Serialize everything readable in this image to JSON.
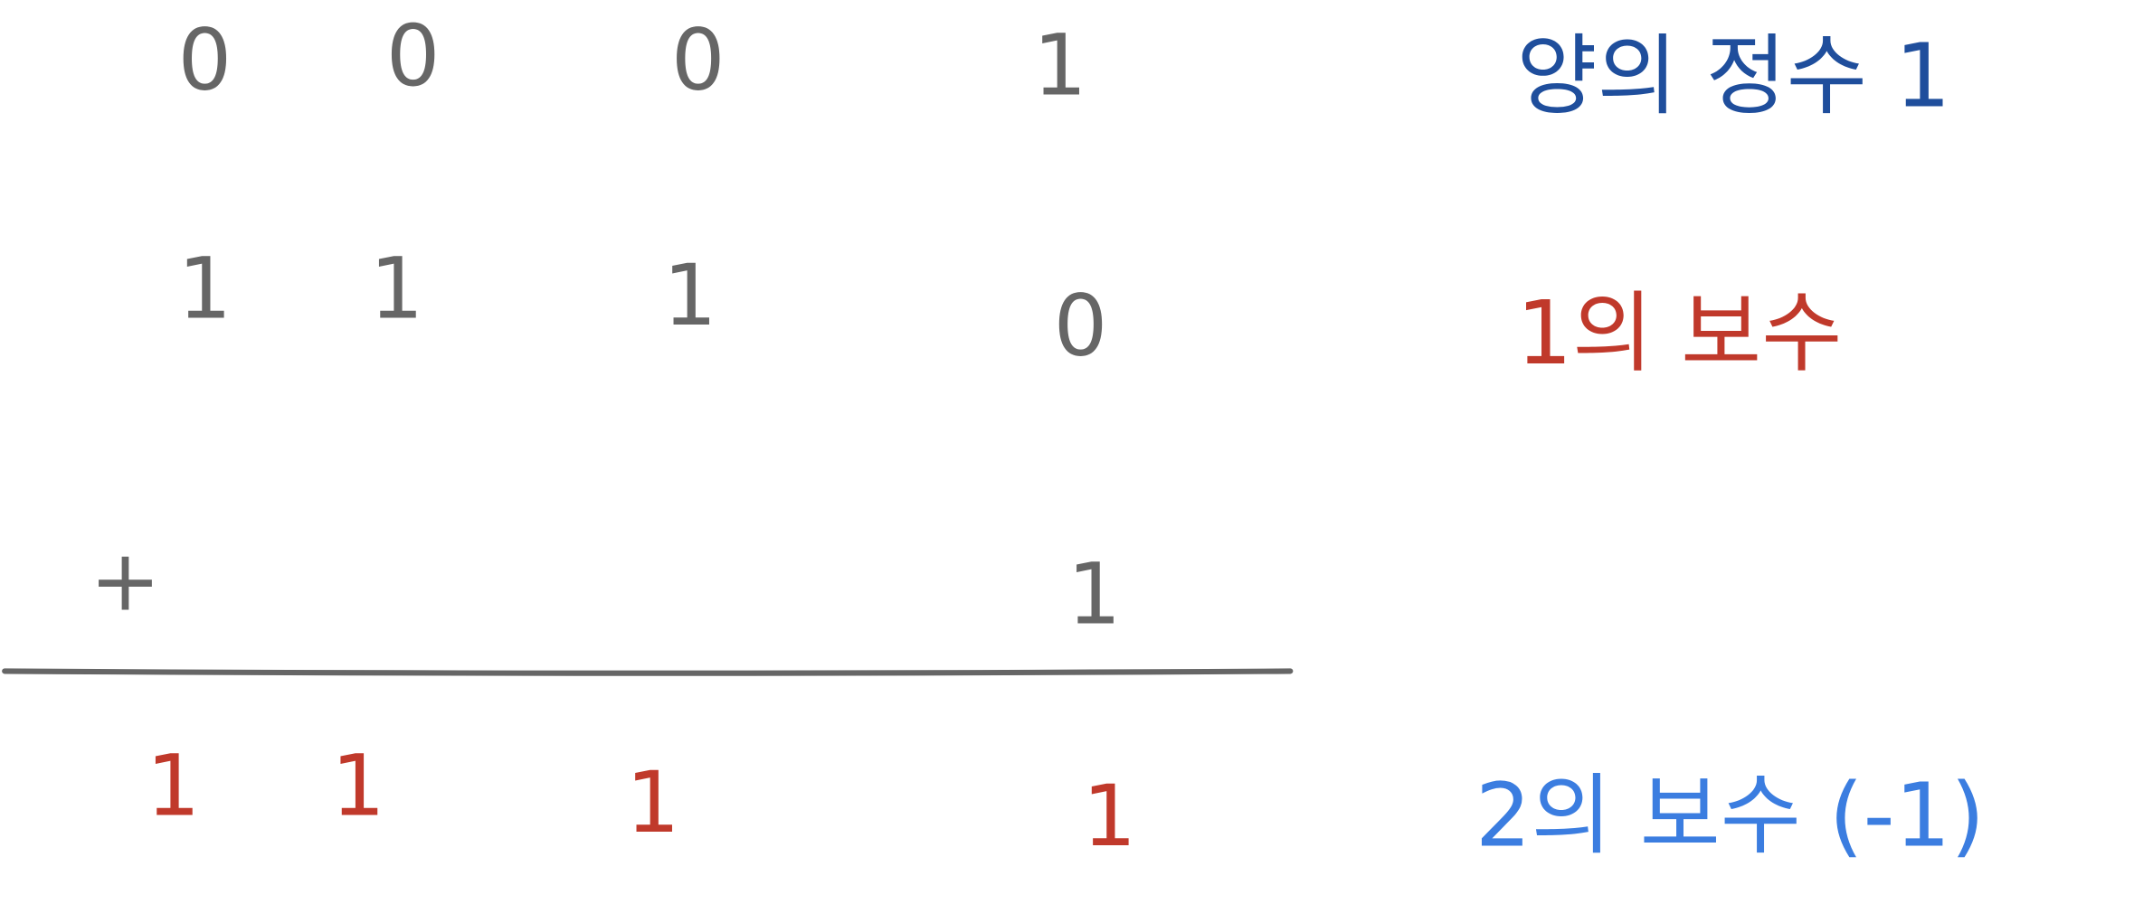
{
  "rows": [
    {
      "digits": [
        "0",
        "0",
        "0",
        "1"
      ],
      "label": "양의 정수 1"
    },
    {
      "digits": [
        "1",
        "1",
        "1",
        "0"
      ],
      "label": "1의 보수"
    }
  ],
  "addend": {
    "operator": "+",
    "digit": "1"
  },
  "result": {
    "digits": [
      "1",
      "1",
      "1",
      "1"
    ],
    "label": "2의 보수 (-1)"
  }
}
